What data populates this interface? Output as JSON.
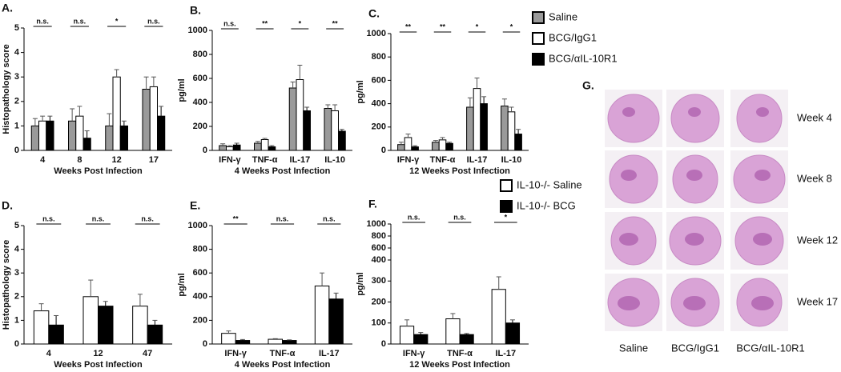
{
  "chart_data": [
    {
      "type": "bar",
      "title": "A.",
      "ylabel": "Histopathology score",
      "xlabel": "Weeks Post Infection",
      "categories": [
        "4",
        "8",
        "12",
        "17"
      ],
      "ylim": [
        0,
        5
      ],
      "yticks": [
        0,
        1,
        2,
        3,
        4,
        5
      ],
      "significance": [
        "n.s.",
        "n.s.",
        "*",
        "n.s."
      ],
      "series": [
        {
          "name": "Saline",
          "color": "#9a9a9a",
          "values": [
            1.0,
            1.2,
            1.0,
            2.5
          ],
          "errors": [
            0.3,
            0.5,
            0.5,
            0.5
          ]
        },
        {
          "name": "BCG/IgG1",
          "color": "#ffffff",
          "values": [
            1.2,
            1.4,
            3.0,
            2.6
          ],
          "errors": [
            0.2,
            0.4,
            0.3,
            0.4
          ]
        },
        {
          "name": "BCG/αIL-10R1",
          "color": "#000000",
          "values": [
            1.2,
            0.5,
            1.0,
            1.4
          ],
          "errors": [
            0.2,
            0.3,
            0.2,
            0.4
          ]
        }
      ]
    },
    {
      "type": "bar",
      "title": "B.",
      "ylabel": "pg/ml",
      "xlabel": "4 Weeks Post Infection",
      "categories": [
        "IFN-γ",
        "TNF-α",
        "IL-17",
        "IL-10"
      ],
      "ylim": [
        0,
        1000
      ],
      "yticks": [
        0,
        200,
        400,
        600,
        800,
        1000
      ],
      "significance": [
        "n.s.",
        "**",
        "*",
        "**"
      ],
      "series": [
        {
          "color": "#9a9a9a",
          "values": [
            40,
            60,
            520,
            350
          ],
          "errors": [
            15,
            15,
            50,
            30
          ]
        },
        {
          "color": "#ffffff",
          "values": [
            30,
            90,
            590,
            330
          ],
          "errors": [
            10,
            10,
            120,
            50
          ]
        },
        {
          "color": "#000000",
          "values": [
            45,
            30,
            330,
            160
          ],
          "errors": [
            15,
            10,
            30,
            15
          ]
        }
      ]
    },
    {
      "type": "bar",
      "title": "C.",
      "ylabel": "pg/ml",
      "xlabel": "12 Weeks Post Infection",
      "categories": [
        "IFN-γ",
        "TNF-α",
        "IL-17",
        "IL-10"
      ],
      "ylim": [
        0,
        1000
      ],
      "yticks": [
        0,
        200,
        400,
        600,
        800,
        1000
      ],
      "significance": [
        "**",
        "**",
        "*",
        "*"
      ],
      "series": [
        {
          "color": "#9a9a9a",
          "values": [
            50,
            70,
            370,
            380
          ],
          "errors": [
            20,
            15,
            80,
            60
          ]
        },
        {
          "color": "#ffffff",
          "values": [
            110,
            90,
            530,
            330
          ],
          "errors": [
            30,
            20,
            90,
            40
          ]
        },
        {
          "color": "#000000",
          "values": [
            30,
            60,
            400,
            140
          ],
          "errors": [
            10,
            10,
            60,
            40
          ]
        }
      ]
    },
    {
      "type": "bar",
      "title": "D.",
      "ylabel": "Histopathology score",
      "xlabel": "Weeks Post Infection",
      "categories": [
        "4",
        "12",
        "47"
      ],
      "ylim": [
        0,
        5
      ],
      "yticks": [
        0,
        1,
        2,
        3,
        4,
        5
      ],
      "significance": [
        "n.s.",
        "n.s.",
        "n.s."
      ],
      "series": [
        {
          "name": "IL-10-/- Saline",
          "color": "#ffffff",
          "values": [
            1.4,
            2.0,
            1.6
          ],
          "errors": [
            0.3,
            0.7,
            0.5
          ]
        },
        {
          "name": "IL-10-/- BCG",
          "color": "#000000",
          "values": [
            0.8,
            1.6,
            0.8
          ],
          "errors": [
            0.4,
            0.2,
            0.2
          ]
        }
      ]
    },
    {
      "type": "bar",
      "title": "E.",
      "ylabel": "pg/ml",
      "xlabel": "4 Weeks Post Infection",
      "categories": [
        "IFN-γ",
        "TNF-α",
        "IL-17"
      ],
      "ylim": [
        0,
        1000
      ],
      "yticks": [
        0,
        200,
        400,
        600,
        800,
        1000
      ],
      "significance": [
        "**",
        "n.s.",
        "n.s."
      ],
      "series": [
        {
          "color": "#ffffff",
          "values": [
            90,
            40,
            490
          ],
          "errors": [
            20,
            5,
            110
          ]
        },
        {
          "color": "#000000",
          "values": [
            30,
            30,
            380
          ],
          "errors": [
            8,
            5,
            50
          ]
        }
      ]
    },
    {
      "type": "bar",
      "title": "F.",
      "ylabel": "pg/ml",
      "xlabel": "12 Weeks Post Infection",
      "categories": [
        "IFN-γ",
        "TNF-α",
        "IL-17"
      ],
      "ylim": [
        0,
        1000
      ],
      "axis_break": [
        400,
        600
      ],
      "yticks": [
        0,
        100,
        200,
        300,
        400,
        600,
        800,
        1000
      ],
      "significance": [
        "n.s.",
        "n.s.",
        "*"
      ],
      "series": [
        {
          "color": "#ffffff",
          "values": [
            85,
            120,
            260
          ],
          "errors": [
            30,
            25,
            60
          ]
        },
        {
          "color": "#000000",
          "values": [
            45,
            45,
            100
          ],
          "errors": [
            10,
            5,
            15
          ]
        }
      ]
    }
  ],
  "tissue_panel": {
    "title": "G.",
    "row_labels": [
      "Week 4",
      "Week 8",
      "Week 12",
      "Week 17"
    ],
    "column_labels": [
      "Saline",
      "BCG/IgG1",
      "BCG/αIL-10R1"
    ]
  }
}
